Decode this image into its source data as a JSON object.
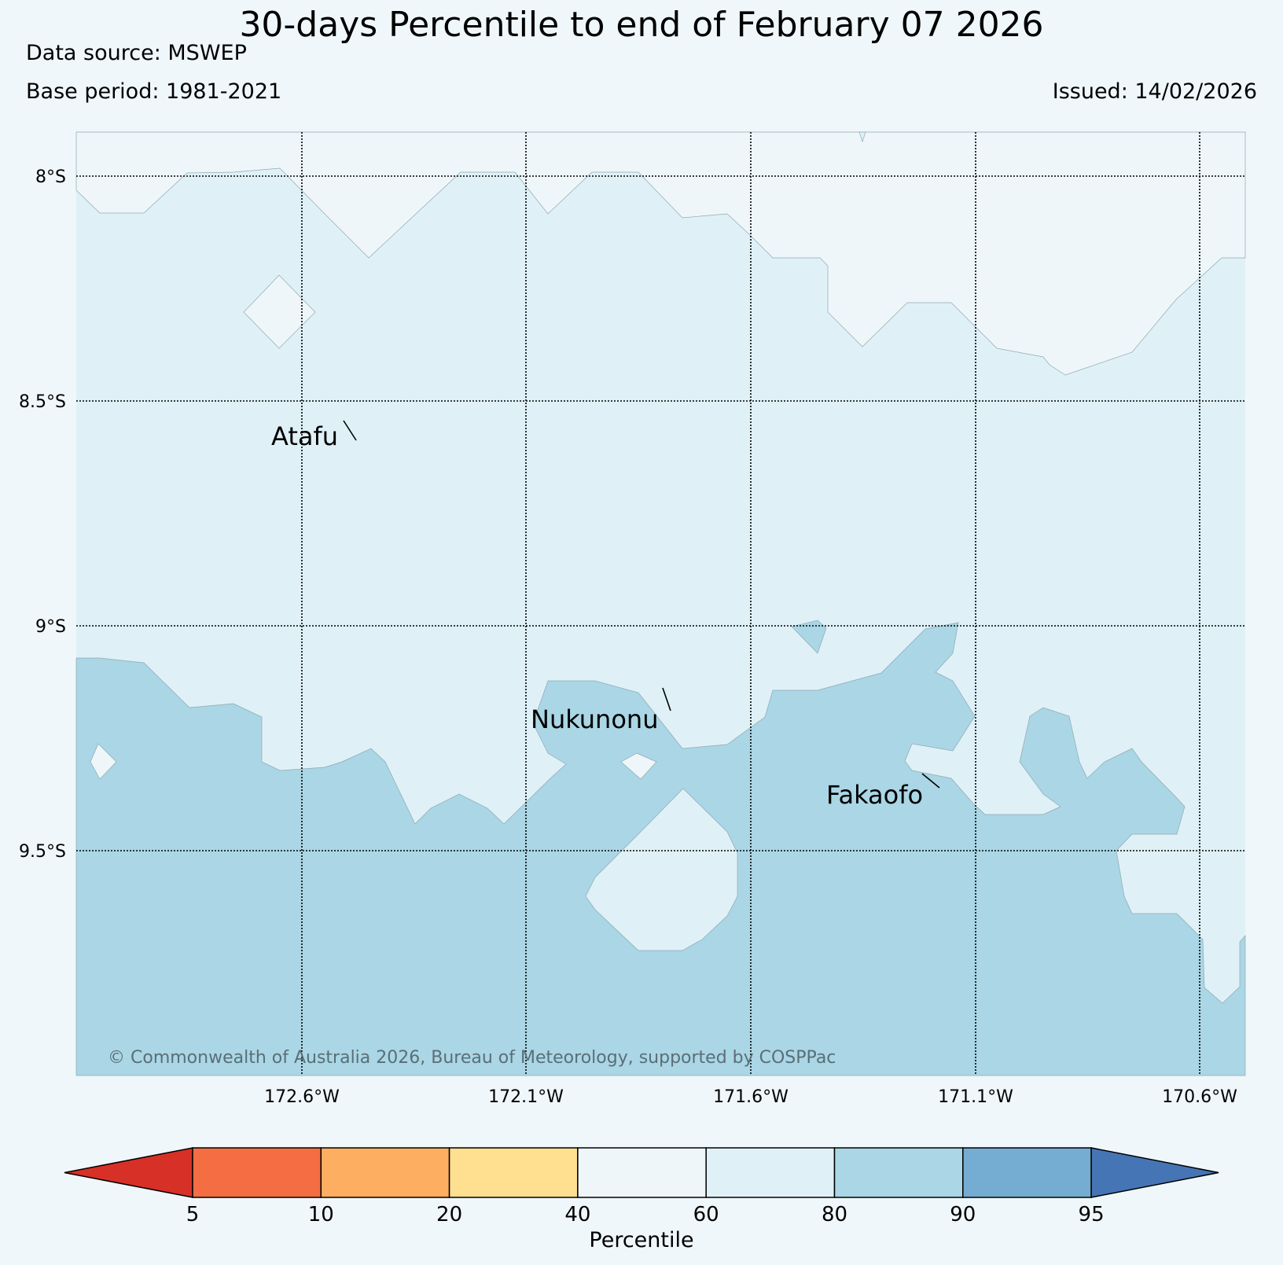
{
  "header": {
    "title": "30-days Percentile to end of February 07 2026",
    "data_source": "Data source: MSWEP",
    "base_period": "Base period: 1981-2021",
    "issued": "Issued: 14/02/2026"
  },
  "map": {
    "lat_labels": [
      "8°S",
      "8.5°S",
      "9°S",
      "9.5°S"
    ],
    "lon_labels": [
      "172.6°W",
      "172.1°W",
      "171.6°W",
      "171.1°W",
      "170.6°W"
    ],
    "places": [
      "Atafu",
      "Nukunonu",
      "Fakaofo"
    ],
    "copyright": "© Commonwealth of Australia 2026, Bureau of Meteorology, supported by COSPPac",
    "colors": {
      "p40_60": "#eef6f9",
      "p60_80": "#dff1f7",
      "p80_90": "#aad6e5"
    }
  },
  "colorbar": {
    "title": "Percentile",
    "ticks": [
      "5",
      "10",
      "20",
      "40",
      "60",
      "80",
      "90",
      "95"
    ],
    "colors": [
      "#d73027",
      "#f46d43",
      "#fdae61",
      "#fee090",
      "#eef6f9",
      "#dff1f7",
      "#aad6e5",
      "#74add1",
      "#4575b4"
    ]
  }
}
